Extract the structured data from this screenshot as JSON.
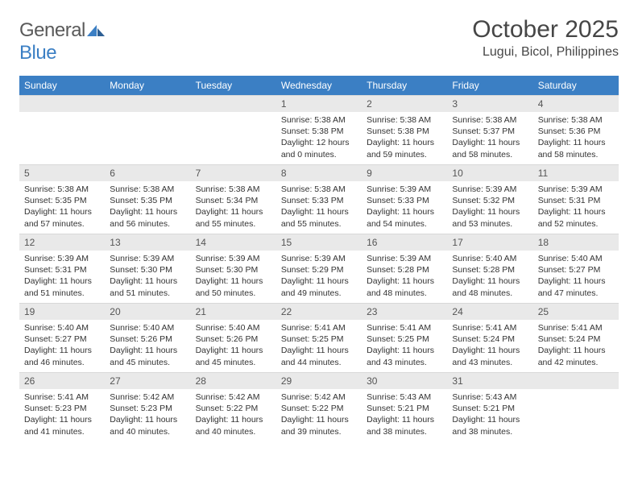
{
  "brand": {
    "name_a": "General",
    "name_b": "Blue"
  },
  "title": "October 2025",
  "location": "Lugui, Bicol, Philippines",
  "colors": {
    "header_bg": "#3b7fc4",
    "header_text": "#ffffff",
    "daynum_bg": "#e9e9e9",
    "text": "#333333",
    "title_text": "#464646"
  },
  "day_headers": [
    "Sunday",
    "Monday",
    "Tuesday",
    "Wednesday",
    "Thursday",
    "Friday",
    "Saturday"
  ],
  "weeks": [
    [
      {
        "n": "",
        "sr": "",
        "ss": "",
        "dl": ""
      },
      {
        "n": "",
        "sr": "",
        "ss": "",
        "dl": ""
      },
      {
        "n": "",
        "sr": "",
        "ss": "",
        "dl": ""
      },
      {
        "n": "1",
        "sr": "Sunrise: 5:38 AM",
        "ss": "Sunset: 5:38 PM",
        "dl": "Daylight: 12 hours and 0 minutes."
      },
      {
        "n": "2",
        "sr": "Sunrise: 5:38 AM",
        "ss": "Sunset: 5:38 PM",
        "dl": "Daylight: 11 hours and 59 minutes."
      },
      {
        "n": "3",
        "sr": "Sunrise: 5:38 AM",
        "ss": "Sunset: 5:37 PM",
        "dl": "Daylight: 11 hours and 58 minutes."
      },
      {
        "n": "4",
        "sr": "Sunrise: 5:38 AM",
        "ss": "Sunset: 5:36 PM",
        "dl": "Daylight: 11 hours and 58 minutes."
      }
    ],
    [
      {
        "n": "5",
        "sr": "Sunrise: 5:38 AM",
        "ss": "Sunset: 5:35 PM",
        "dl": "Daylight: 11 hours and 57 minutes."
      },
      {
        "n": "6",
        "sr": "Sunrise: 5:38 AM",
        "ss": "Sunset: 5:35 PM",
        "dl": "Daylight: 11 hours and 56 minutes."
      },
      {
        "n": "7",
        "sr": "Sunrise: 5:38 AM",
        "ss": "Sunset: 5:34 PM",
        "dl": "Daylight: 11 hours and 55 minutes."
      },
      {
        "n": "8",
        "sr": "Sunrise: 5:38 AM",
        "ss": "Sunset: 5:33 PM",
        "dl": "Daylight: 11 hours and 55 minutes."
      },
      {
        "n": "9",
        "sr": "Sunrise: 5:39 AM",
        "ss": "Sunset: 5:33 PM",
        "dl": "Daylight: 11 hours and 54 minutes."
      },
      {
        "n": "10",
        "sr": "Sunrise: 5:39 AM",
        "ss": "Sunset: 5:32 PM",
        "dl": "Daylight: 11 hours and 53 minutes."
      },
      {
        "n": "11",
        "sr": "Sunrise: 5:39 AM",
        "ss": "Sunset: 5:31 PM",
        "dl": "Daylight: 11 hours and 52 minutes."
      }
    ],
    [
      {
        "n": "12",
        "sr": "Sunrise: 5:39 AM",
        "ss": "Sunset: 5:31 PM",
        "dl": "Daylight: 11 hours and 51 minutes."
      },
      {
        "n": "13",
        "sr": "Sunrise: 5:39 AM",
        "ss": "Sunset: 5:30 PM",
        "dl": "Daylight: 11 hours and 51 minutes."
      },
      {
        "n": "14",
        "sr": "Sunrise: 5:39 AM",
        "ss": "Sunset: 5:30 PM",
        "dl": "Daylight: 11 hours and 50 minutes."
      },
      {
        "n": "15",
        "sr": "Sunrise: 5:39 AM",
        "ss": "Sunset: 5:29 PM",
        "dl": "Daylight: 11 hours and 49 minutes."
      },
      {
        "n": "16",
        "sr": "Sunrise: 5:39 AM",
        "ss": "Sunset: 5:28 PM",
        "dl": "Daylight: 11 hours and 48 minutes."
      },
      {
        "n": "17",
        "sr": "Sunrise: 5:40 AM",
        "ss": "Sunset: 5:28 PM",
        "dl": "Daylight: 11 hours and 48 minutes."
      },
      {
        "n": "18",
        "sr": "Sunrise: 5:40 AM",
        "ss": "Sunset: 5:27 PM",
        "dl": "Daylight: 11 hours and 47 minutes."
      }
    ],
    [
      {
        "n": "19",
        "sr": "Sunrise: 5:40 AM",
        "ss": "Sunset: 5:27 PM",
        "dl": "Daylight: 11 hours and 46 minutes."
      },
      {
        "n": "20",
        "sr": "Sunrise: 5:40 AM",
        "ss": "Sunset: 5:26 PM",
        "dl": "Daylight: 11 hours and 45 minutes."
      },
      {
        "n": "21",
        "sr": "Sunrise: 5:40 AM",
        "ss": "Sunset: 5:26 PM",
        "dl": "Daylight: 11 hours and 45 minutes."
      },
      {
        "n": "22",
        "sr": "Sunrise: 5:41 AM",
        "ss": "Sunset: 5:25 PM",
        "dl": "Daylight: 11 hours and 44 minutes."
      },
      {
        "n": "23",
        "sr": "Sunrise: 5:41 AM",
        "ss": "Sunset: 5:25 PM",
        "dl": "Daylight: 11 hours and 43 minutes."
      },
      {
        "n": "24",
        "sr": "Sunrise: 5:41 AM",
        "ss": "Sunset: 5:24 PM",
        "dl": "Daylight: 11 hours and 43 minutes."
      },
      {
        "n": "25",
        "sr": "Sunrise: 5:41 AM",
        "ss": "Sunset: 5:24 PM",
        "dl": "Daylight: 11 hours and 42 minutes."
      }
    ],
    [
      {
        "n": "26",
        "sr": "Sunrise: 5:41 AM",
        "ss": "Sunset: 5:23 PM",
        "dl": "Daylight: 11 hours and 41 minutes."
      },
      {
        "n": "27",
        "sr": "Sunrise: 5:42 AM",
        "ss": "Sunset: 5:23 PM",
        "dl": "Daylight: 11 hours and 40 minutes."
      },
      {
        "n": "28",
        "sr": "Sunrise: 5:42 AM",
        "ss": "Sunset: 5:22 PM",
        "dl": "Daylight: 11 hours and 40 minutes."
      },
      {
        "n": "29",
        "sr": "Sunrise: 5:42 AM",
        "ss": "Sunset: 5:22 PM",
        "dl": "Daylight: 11 hours and 39 minutes."
      },
      {
        "n": "30",
        "sr": "Sunrise: 5:43 AM",
        "ss": "Sunset: 5:21 PM",
        "dl": "Daylight: 11 hours and 38 minutes."
      },
      {
        "n": "31",
        "sr": "Sunrise: 5:43 AM",
        "ss": "Sunset: 5:21 PM",
        "dl": "Daylight: 11 hours and 38 minutes."
      },
      {
        "n": "",
        "sr": "",
        "ss": "",
        "dl": ""
      }
    ]
  ]
}
